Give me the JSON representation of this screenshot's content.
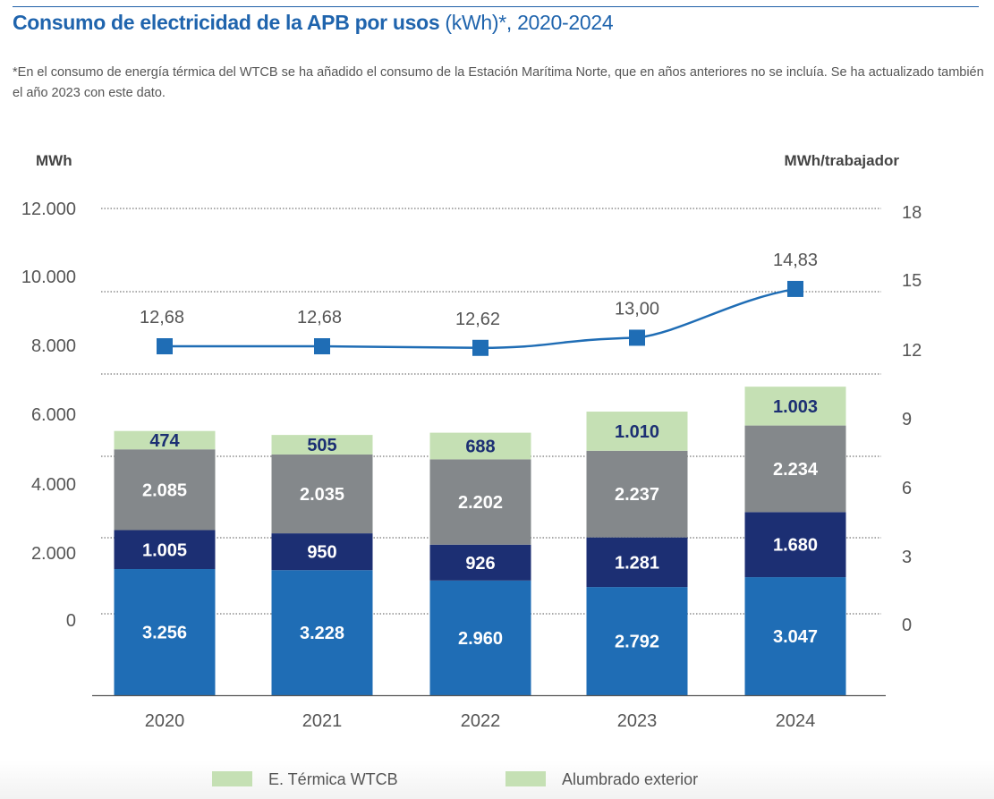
{
  "title": {
    "bold": "Consumo de electricidad de la APB por usos",
    "rest": " (kWh)*, 2020-2024"
  },
  "note": "*En el consumo de energía térmica del WTCB se ha añadido el consumo de la Estación Marítima Norte, que en años anteriores no se incluía. Se ha actualizado también el año 2023 con este dato.",
  "chart_data": {
    "type": "bar",
    "stacked": true,
    "categories": [
      "2020",
      "2021",
      "2022",
      "2023",
      "2024"
    ],
    "ylabel_left": "MWh",
    "ylabel_right": "MWh/trabajador",
    "left_ticks": [
      "12.000",
      "10.000",
      "8.000",
      "6.000",
      "4.000",
      "2.000",
      "0"
    ],
    "right_ticks": [
      "18",
      "15",
      "12",
      "9",
      "6",
      "3",
      "0"
    ],
    "grid": true,
    "series": [
      {
        "values": [
          3256,
          3228,
          2960,
          2792,
          3047
        ],
        "labels": [
          "3.256",
          "3.228",
          "2.960",
          "2.792",
          "3.047"
        ],
        "color": "#1f6db5"
      },
      {
        "values": [
          1005,
          950,
          926,
          1281,
          1680
        ],
        "labels": [
          "1.005",
          "950",
          "926",
          "1.281",
          "1.680"
        ],
        "color": "#1c2f73"
      },
      {
        "values": [
          2085,
          2035,
          2202,
          2237,
          2234
        ],
        "labels": [
          "2.085",
          "2.035",
          "2.202",
          "2.237",
          "2.234"
        ],
        "color": "#84888b"
      },
      {
        "values": [
          474,
          505,
          688,
          1010,
          1003
        ],
        "labels": [
          "474",
          "505",
          "688",
          "1.010",
          "1.003"
        ],
        "color": "#c5e0b4"
      }
    ],
    "line": {
      "axis": "right",
      "values": [
        12.68,
        12.68,
        12.62,
        13.0,
        14.83
      ],
      "labels": [
        "12,68",
        "12,68",
        "12,62",
        "13,00",
        "14,83"
      ],
      "color": "#1f6db5"
    },
    "legend": {
      "position": "bottom",
      "entries": [
        {
          "label": "E. Térmica WTCB",
          "color": "#c5e0b4"
        },
        {
          "label": "Alumbrado exterior",
          "color": "#c5e0b4"
        }
      ]
    }
  }
}
